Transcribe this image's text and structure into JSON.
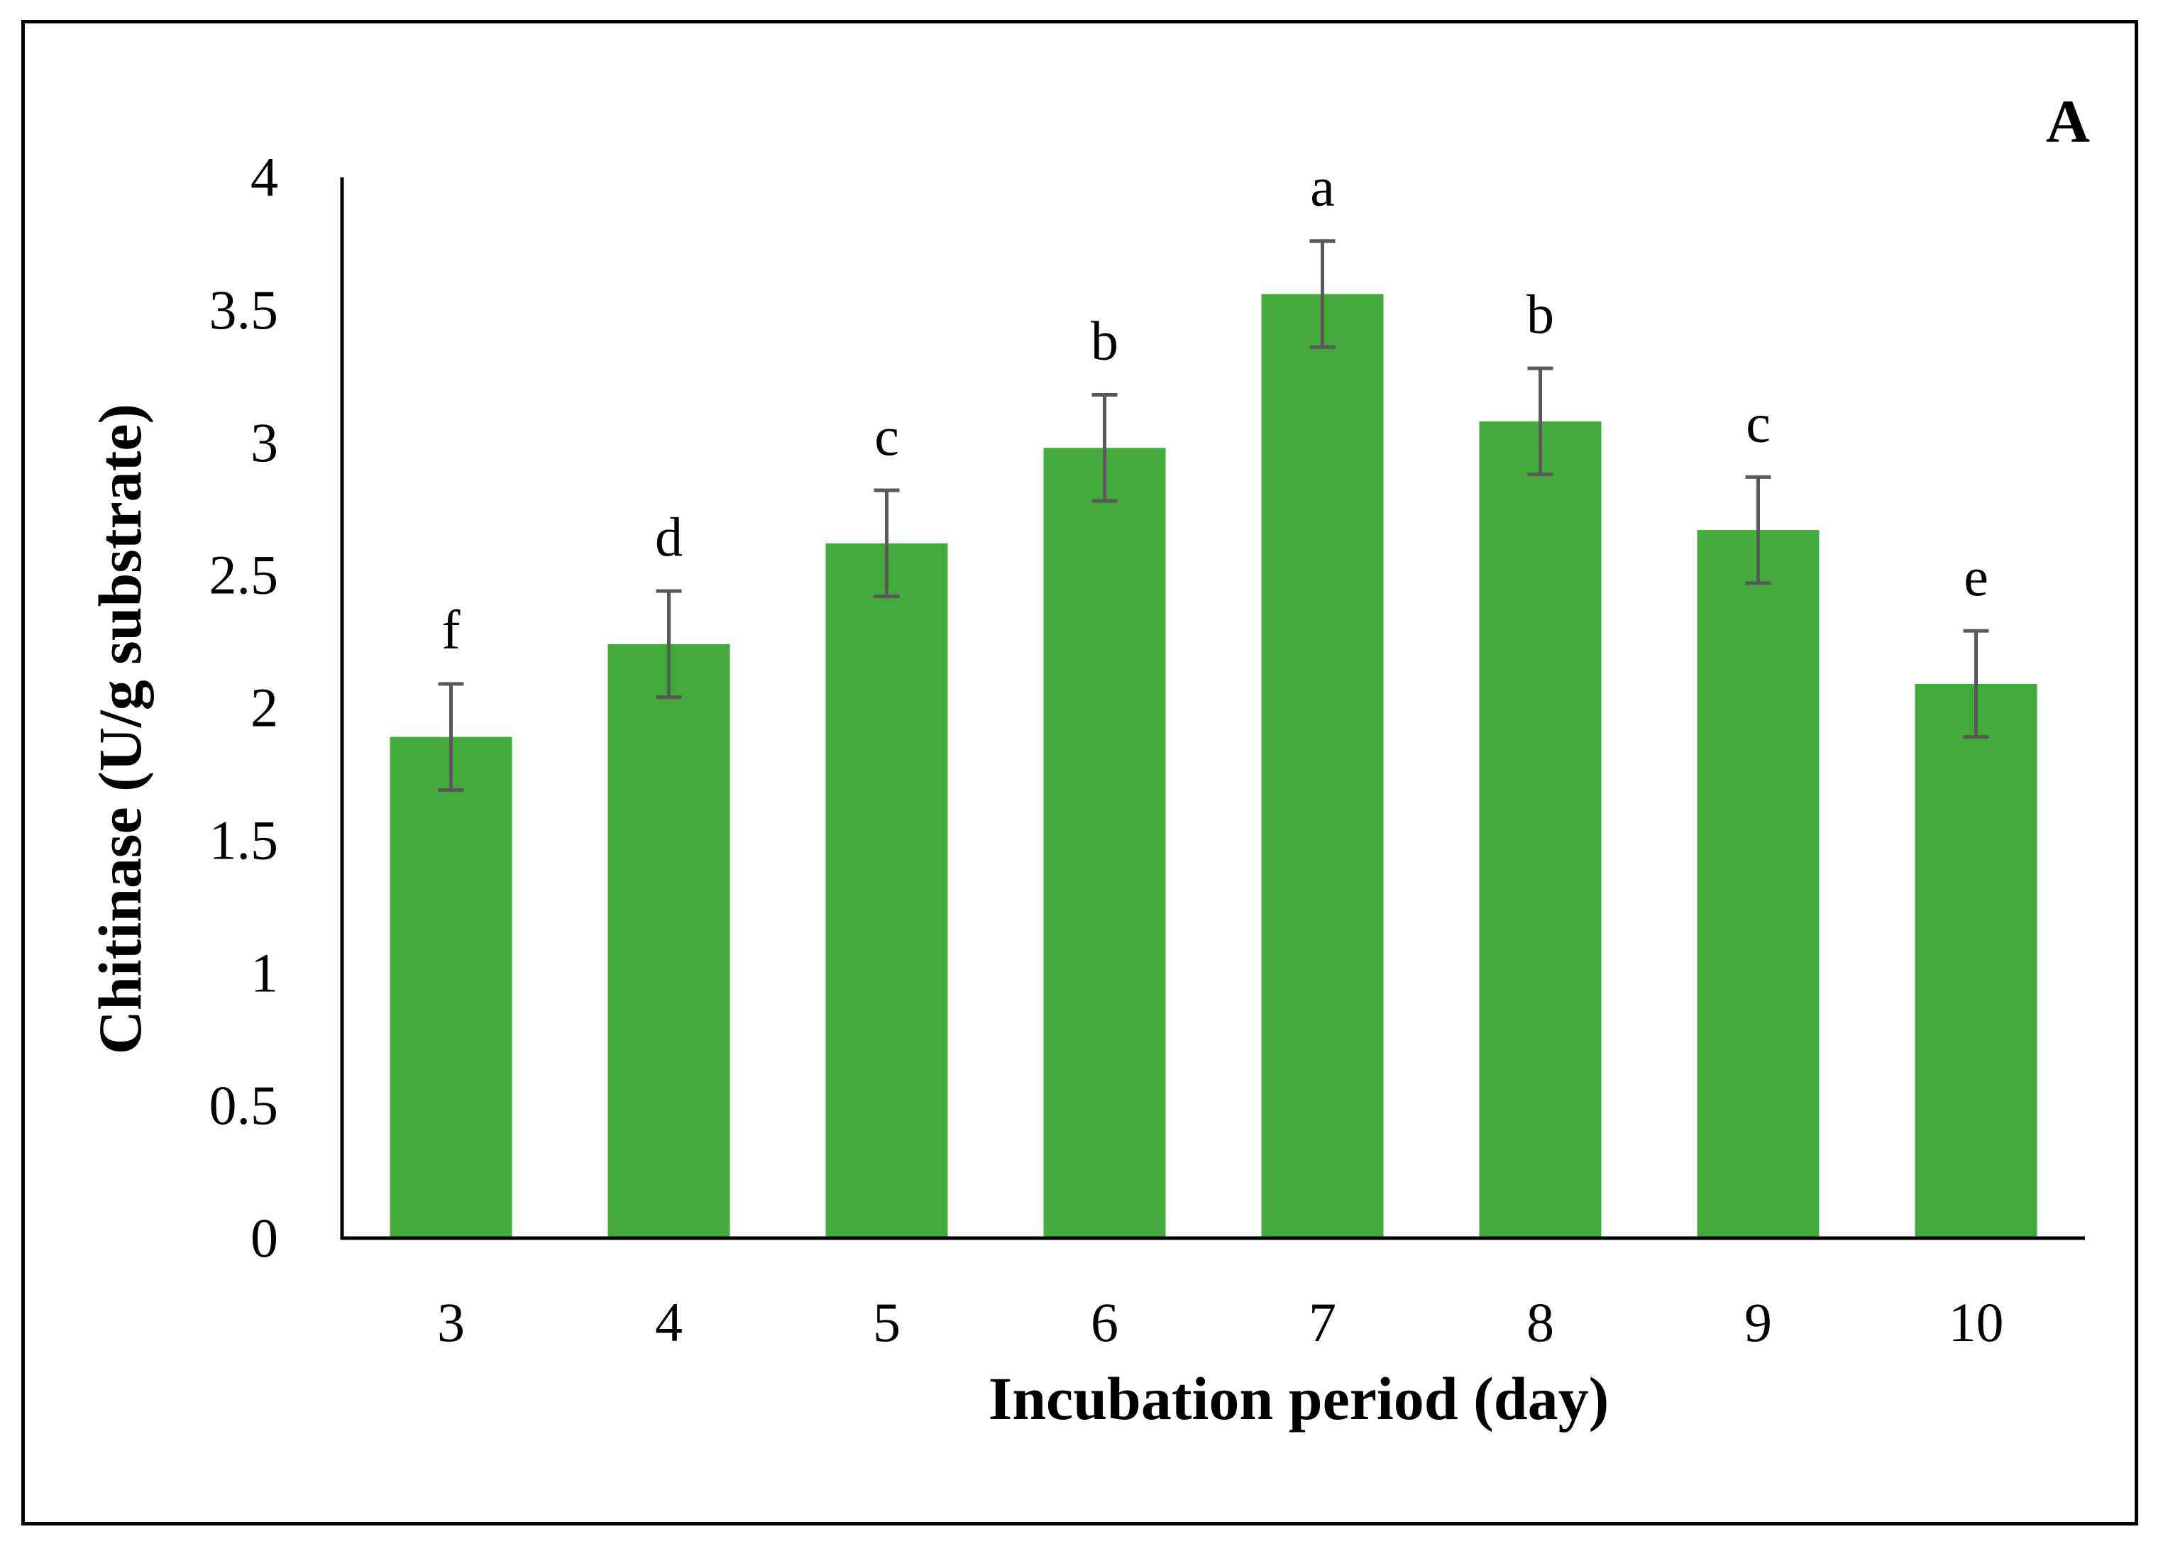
{
  "chart_data": {
    "type": "bar",
    "panel_label": "A",
    "xlabel": "Incubation period (day)",
    "ylabel": "Chitinase (U/g substrate)",
    "ylim": [
      0,
      4
    ],
    "yticks": [
      "0",
      "0.5",
      "1",
      "1.5",
      "2",
      "2.5",
      "3",
      "3.5",
      "4"
    ],
    "ytick_values": [
      0,
      0.5,
      1,
      1.5,
      2,
      2.5,
      3,
      3.5,
      4
    ],
    "categories": [
      "3",
      "4",
      "5",
      "6",
      "7",
      "8",
      "9",
      "10"
    ],
    "values": [
      1.89,
      2.24,
      2.62,
      2.98,
      3.56,
      3.08,
      2.67,
      2.09
    ],
    "errors": [
      0.2,
      0.2,
      0.2,
      0.2,
      0.2,
      0.2,
      0.2,
      0.2
    ],
    "significance_letters": [
      "f",
      "d",
      "c",
      "b",
      "a",
      "b",
      "c",
      "e"
    ],
    "bar_color": "#43ab3b",
    "error_bar_color": "#595959",
    "grid": false
  }
}
